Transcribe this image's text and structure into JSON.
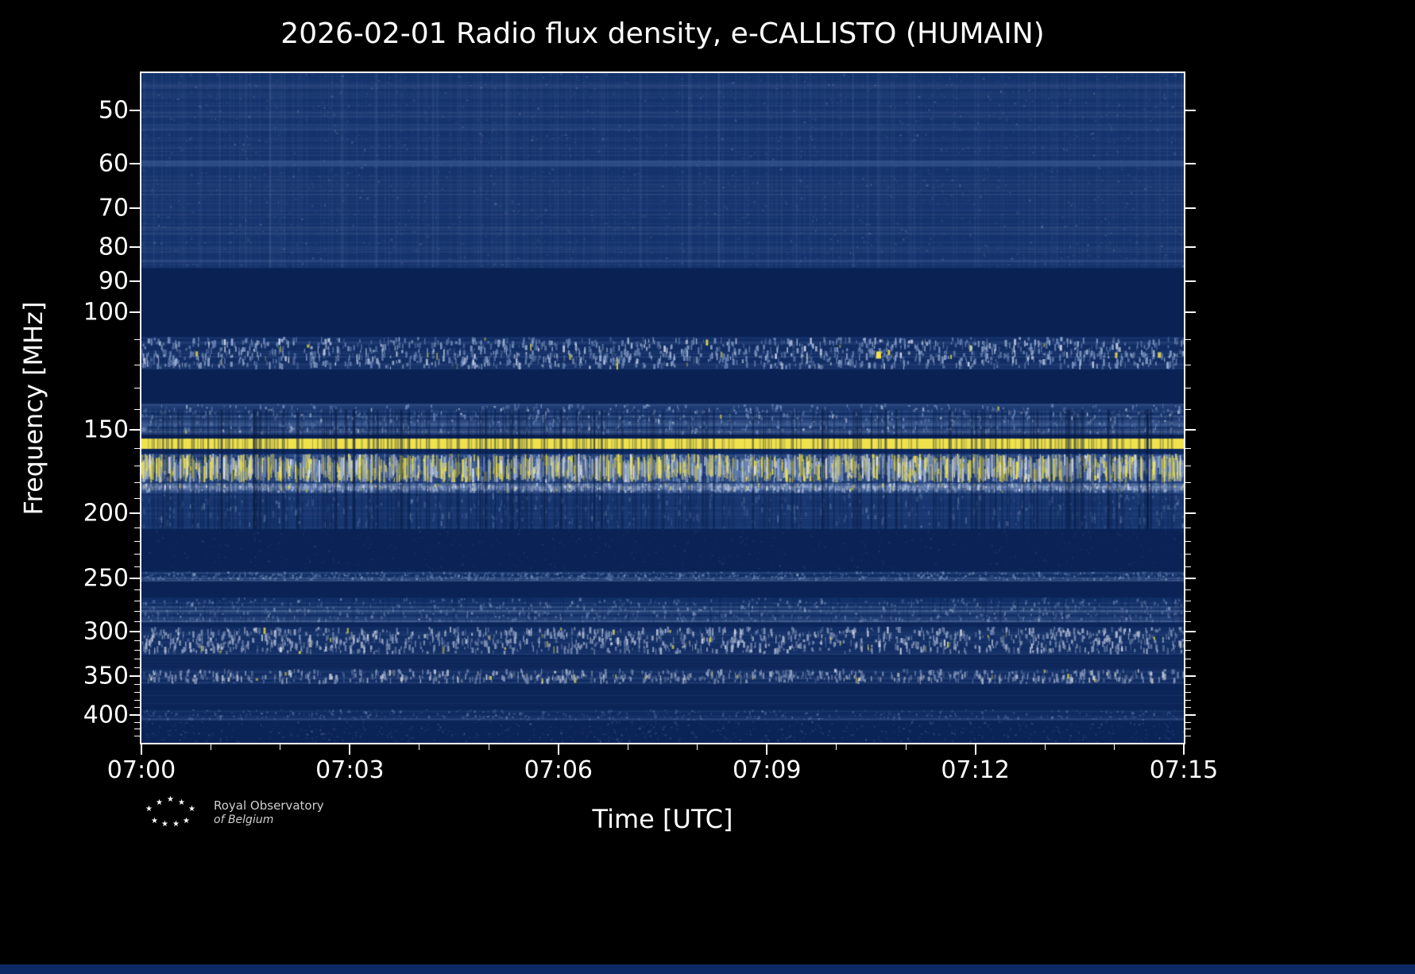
{
  "title": "2026-02-01 Radio flux density, e-CALLISTO (HUMAIN)",
  "axes": {
    "xlabel": "Time [UTC]",
    "ylabel": "Frequency [MHz]",
    "x_tick_labels": [
      "07:00",
      "07:03",
      "07:06",
      "07:09",
      "07:12",
      "07:15"
    ],
    "y_tick_labels": [
      "50",
      "60",
      "70",
      "80",
      "90",
      "100",
      "150",
      "200",
      "250",
      "300",
      "350",
      "400"
    ]
  },
  "logo": {
    "line1": "Royal Observatory",
    "line2": "of Belgium"
  },
  "chart_data": {
    "type": "heatmap",
    "title": "2026-02-01 Radio flux density, e-CALLISTO (HUMAIN)",
    "date": "2026-02-01",
    "instrument": "e-CALLISTO",
    "station": "HUMAIN",
    "xlabel": "Time [UTC]",
    "ylabel": "Frequency [MHz]",
    "x_start": "07:00",
    "x_end": "07:15",
    "duration_minutes": 15,
    "x_major_ticks_minutes": [
      0,
      3,
      6,
      9,
      12,
      15
    ],
    "y_scale": "log",
    "freq_min": 44,
    "freq_max": 440,
    "y_major_ticks_mhz": [
      50,
      60,
      70,
      80,
      90,
      100,
      150,
      200,
      250,
      300,
      350,
      400
    ],
    "colors": {
      "figure_bg": "#000000",
      "plot_base": "#0b2459",
      "frame": "#ffffff",
      "rfi_line": "#f0e24c"
    },
    "bands": [
      {
        "f": [
          44,
          86
        ],
        "base": "#14326c",
        "hstripes": {
          "density": 0.45,
          "alpha": 0.09,
          "color": "#8fa8d0"
        },
        "speckle": {
          "density": 2.2,
          "h": [
            1,
            3
          ],
          "amin": 0.06,
          "amax": 0.28,
          "colors": [
            [
              "#56749f",
              6
            ],
            [
              "#8fa8d0",
              2
            ],
            [
              "#c0cde2",
              0.4
            ]
          ]
        },
        "vstripes": {
          "density": 0.35,
          "alpha": 0.06,
          "color": "#8fa8d0"
        }
      },
      {
        "f": [
          59.4,
          60.7
        ],
        "base": "#3b5b95",
        "base_alpha": 0.55
      },
      {
        "f": [
          52.4,
          53.4
        ],
        "base": "#2c4c86",
        "base_alpha": 0.3
      },
      {
        "f": [
          86,
          108.5
        ],
        "base": "#0a2153"
      },
      {
        "f": [
          109,
          122
        ],
        "base": "#102c63",
        "hstripes": {
          "density": 0.35,
          "alpha": 0.14,
          "color": "#7d96c4"
        },
        "speckle": {
          "density": 1.15,
          "h": [
            3,
            9
          ],
          "amin": 0.3,
          "amax": 0.95,
          "colors": [
            [
              "#6d88ba",
              5
            ],
            [
              "#9db1d5",
              3
            ],
            [
              "#d2dbeb",
              1
            ],
            [
              "#ece049",
              0.18
            ]
          ]
        }
      },
      {
        "f": [
          122,
          137
        ],
        "base": "#0a2153"
      },
      {
        "f": [
          137,
          152.5
        ],
        "base": "#14326c",
        "hstripes": {
          "density": 0.7,
          "alpha": 0.22,
          "color": "#92a7cc"
        },
        "speckle": {
          "density": 0.6,
          "h": [
            2,
            6
          ],
          "amin": 0.25,
          "amax": 0.75,
          "colors": [
            [
              "#7d96c4",
              4
            ],
            [
              "#bcc9e0",
              1
            ],
            [
              "#ece049",
              0.08
            ]
          ]
        }
      },
      {
        "f": [
          146.5,
          148.5
        ],
        "base": "#4b6aa2",
        "base_alpha": 0.55
      },
      {
        "f": [
          152.5,
          154.6
        ],
        "base": "#0a2153"
      },
      {
        "f": [
          154.6,
          160.2
        ],
        "base": "#f0e24c"
      },
      {
        "f": [
          160.2,
          162.8
        ],
        "base": "#0d2a60"
      },
      {
        "f": [
          162.8,
          180
        ],
        "base": "#1d3c77",
        "hstripes": {
          "density": 0.5,
          "alpha": 0.2,
          "color": "#92a7cc"
        },
        "speckle": {
          "density": 1.7,
          "h": [
            4,
            30
          ],
          "amin": 0.4,
          "amax": 1.0,
          "colors": [
            [
              "#ecdf4e",
              4
            ],
            [
              "#9db1d5",
              3
            ],
            [
              "#dce3f0",
              2
            ],
            [
              "#5f7db2",
              2
            ]
          ]
        }
      },
      {
        "f": [
          180,
          186.5
        ],
        "base": "#2e4d88",
        "hstripes": {
          "density": 0.9,
          "alpha": 0.28,
          "color": "#a3b6d8"
        },
        "speckle": {
          "density": 0.8,
          "h": [
            2,
            6
          ],
          "amin": 0.3,
          "amax": 0.8,
          "colors": [
            [
              "#9db1d5",
              3
            ],
            [
              "#dce3f0",
              1
            ],
            [
              "#ecdf4e",
              0.25
            ]
          ]
        }
      },
      {
        "f": [
          186.5,
          211
        ],
        "base": "#17356f",
        "hstripes": {
          "density": 0.25,
          "alpha": 0.12,
          "color": "#7d96c4"
        },
        "speckle": {
          "density": 0.35,
          "h": [
            2,
            9
          ],
          "amin": 0.15,
          "amax": 0.45,
          "colors": [
            [
              "#5f7db2",
              3
            ],
            [
              "#92a7cc",
              1
            ]
          ]
        }
      },
      {
        "f": [
          140,
          211
        ],
        "vstripes": {
          "density": 0.3,
          "alpha": 0.45,
          "color": "#071a42"
        }
      },
      {
        "f": [
          211,
          243
        ],
        "base": "#0a2255",
        "speckle": {
          "density": 0.5,
          "h": [
            1,
            3
          ],
          "amin": 0.05,
          "amax": 0.2,
          "colors": [
            [
              "#56749f",
              1
            ]
          ]
        }
      },
      {
        "f": [
          244,
          252.5
        ],
        "base": "#102d64",
        "hstripes": {
          "density": 0.9,
          "alpha": 0.2,
          "color": "#8fa8d0"
        },
        "speckle": {
          "density": 0.7,
          "h": [
            1,
            4
          ],
          "amin": 0.2,
          "amax": 0.6,
          "colors": [
            [
              "#6d88ba",
              4
            ],
            [
              "#aebfdc",
              1
            ]
          ]
        }
      },
      {
        "f": [
          252.5,
          267
        ],
        "base": "#0a2255"
      },
      {
        "f": [
          267,
          291
        ],
        "base": "#122f67",
        "hstripes": {
          "density": 0.75,
          "alpha": 0.2,
          "color": "#8fa8d0"
        },
        "speckle": {
          "density": 0.55,
          "h": [
            2,
            5
          ],
          "amin": 0.2,
          "amax": 0.55,
          "colors": [
            [
              "#7d96c4",
              3
            ],
            [
              "#bcc9e0",
              1
            ]
          ]
        },
        "vstripes": {
          "density": 0.2,
          "alpha": 0.2,
          "color": "#0a2157"
        }
      },
      {
        "f": [
          295,
          325
        ],
        "base": "#112d64",
        "hstripes": {
          "density": 0.3,
          "alpha": 0.13,
          "color": "#6d88ba"
        },
        "speckle": {
          "density": 1.05,
          "h": [
            3,
            9
          ],
          "amin": 0.3,
          "amax": 0.85,
          "colors": [
            [
              "#8799bd",
              4
            ],
            [
              "#bac4d8",
              2
            ],
            [
              "#e2e6ee",
              0.7
            ],
            [
              "#ece049",
              0.12
            ]
          ]
        }
      },
      {
        "f": [
          325,
          341
        ],
        "base": "#0d2659",
        "hstripes": {
          "density": 0.3,
          "alpha": 0.1,
          "color": "#6d88ba"
        }
      },
      {
        "f": [
          341,
          360
        ],
        "base": "#0f2b61",
        "hstripes": {
          "density": 0.45,
          "alpha": 0.14,
          "color": "#6d88ba"
        },
        "speckle": {
          "density": 0.6,
          "h": [
            3,
            8
          ],
          "amin": 0.25,
          "amax": 0.85,
          "colors": [
            [
              "#8799bd",
              4
            ],
            [
              "#ccd4e3",
              1.5
            ],
            [
              "#efe9cf",
              0.4
            ],
            [
              "#ece049",
              0.15
            ]
          ]
        }
      },
      {
        "f": [
          360,
          392
        ],
        "base": "#0b2457",
        "hstripes": {
          "density": 0.2,
          "alpha": 0.09,
          "color": "#6d88ba"
        }
      },
      {
        "f": [
          392,
          408
        ],
        "base": "#0e2a5f",
        "hstripes": {
          "density": 0.55,
          "alpha": 0.14,
          "color": "#7d96c4"
        },
        "speckle": {
          "density": 0.35,
          "h": [
            1,
            4
          ],
          "amin": 0.15,
          "amax": 0.45,
          "colors": [
            [
              "#6d88ba",
              3
            ],
            [
              "#9db1d5",
              1
            ]
          ]
        }
      },
      {
        "f": [
          408,
          440
        ],
        "base": "#0b2457",
        "speckle": {
          "density": 0.5,
          "h": [
            1,
            3
          ],
          "amin": 0.08,
          "amax": 0.3,
          "colors": [
            [
              "#56749f",
              4
            ],
            [
              "#8fa8d0",
              1
            ]
          ]
        }
      }
    ],
    "spots": [
      {
        "t": 0.705,
        "f": 116,
        "w": 6,
        "h": 9,
        "c": "#f2e24b",
        "a": 1.0
      },
      {
        "t": 0.716,
        "f": 115,
        "w": 3,
        "h": 7,
        "c": "#f2e24b",
        "a": 0.85
      },
      {
        "t": 0.052,
        "f": 115.5,
        "w": 3,
        "h": 6,
        "c": "#f2e24b",
        "a": 0.8
      },
      {
        "t": 0.975,
        "f": 116,
        "w": 4,
        "h": 7,
        "c": "#f2e24b",
        "a": 0.85
      },
      {
        "t": 0.452,
        "f": 301,
        "w": 3,
        "h": 6,
        "c": "#e8e04a",
        "a": 0.6
      },
      {
        "t": 0.888,
        "f": 350,
        "w": 3,
        "h": 6,
        "c": "#e8e04a",
        "a": 0.7
      }
    ]
  }
}
